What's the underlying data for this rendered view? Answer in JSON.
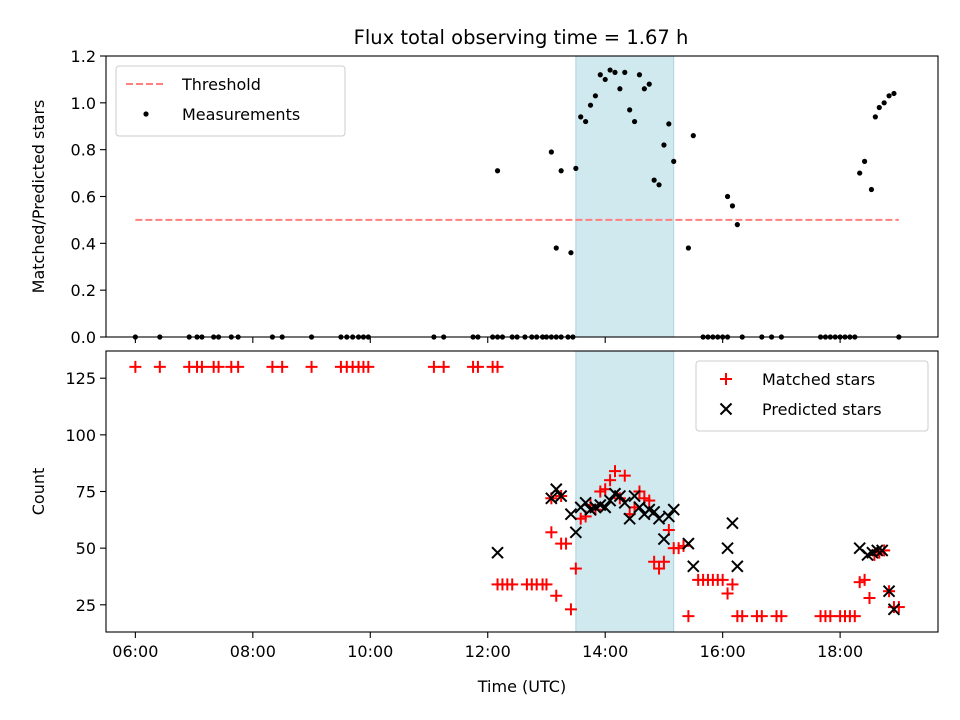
{
  "figure": {
    "title": "Flux total observing time = 1.67 h",
    "highlight_start": "13:30",
    "highlight_end": "15:10",
    "highlight_color": "#cfe9ef"
  },
  "chart_data": [
    {
      "type": "scatter",
      "title": "Flux total observing time = 1.67 h",
      "xlabel": "",
      "ylabel": "Matched/Predicted stars",
      "xlim": [
        "05:30",
        "19:40"
      ],
      "ylim": [
        0,
        1.2
      ],
      "yticks": [
        "0.0",
        "0.2",
        "0.4",
        "0.6",
        "0.8",
        "1.0",
        "1.2"
      ],
      "xticks": [
        "06:00",
        "08:00",
        "10:00",
        "12:00",
        "14:00",
        "16:00",
        "18:00"
      ],
      "show_xtick_labels": false,
      "grid": false,
      "legend": "top-left",
      "threshold": {
        "name": "Threshold",
        "value": 0.5,
        "x_start": "06:00",
        "x_end": "19:00",
        "color": "#ff7f7f",
        "style": "dashed"
      },
      "series": [
        {
          "name": "Measurements",
          "color": "#000000",
          "marker": "dot",
          "points": [
            [
              "06:00",
              0
            ],
            [
              "06:25",
              0
            ],
            [
              "06:55",
              0
            ],
            [
              "07:03",
              0
            ],
            [
              "07:08",
              0
            ],
            [
              "07:20",
              0
            ],
            [
              "07:25",
              0
            ],
            [
              "07:38",
              0
            ],
            [
              "07:45",
              0
            ],
            [
              "08:20",
              0
            ],
            [
              "08:30",
              0
            ],
            [
              "09:00",
              0
            ],
            [
              "09:30",
              0
            ],
            [
              "09:36",
              0
            ],
            [
              "09:42",
              0
            ],
            [
              "09:48",
              0
            ],
            [
              "09:53",
              0
            ],
            [
              "09:58",
              0
            ],
            [
              "11:05",
              0
            ],
            [
              "11:15",
              0
            ],
            [
              "11:45",
              0
            ],
            [
              "11:50",
              0
            ],
            [
              "12:05",
              0
            ],
            [
              "12:10",
              0
            ],
            [
              "12:15",
              0
            ],
            [
              "12:25",
              0
            ],
            [
              "12:30",
              0
            ],
            [
              "12:38",
              0
            ],
            [
              "12:45",
              0
            ],
            [
              "12:50",
              0
            ],
            [
              "12:56",
              0
            ],
            [
              "13:00",
              0
            ],
            [
              "13:05",
              0
            ],
            [
              "13:10",
              0
            ],
            [
              "13:15",
              0
            ],
            [
              "13:22",
              0
            ],
            [
              "13:27",
              0
            ],
            [
              "12:10",
              0.71
            ],
            [
              "13:05",
              0.79
            ],
            [
              "13:10",
              0.38
            ],
            [
              "13:15",
              0.71
            ],
            [
              "13:25",
              0.36
            ],
            [
              "13:30",
              0.72
            ],
            [
              "13:35",
              0.94
            ],
            [
              "13:40",
              0.92
            ],
            [
              "13:45",
              0.99
            ],
            [
              "13:50",
              1.03
            ],
            [
              "13:55",
              1.12
            ],
            [
              "14:00",
              1.1
            ],
            [
              "14:05",
              1.14
            ],
            [
              "14:10",
              1.13
            ],
            [
              "14:15",
              1.06
            ],
            [
              "14:20",
              1.13
            ],
            [
              "14:25",
              0.97
            ],
            [
              "14:30",
              0.92
            ],
            [
              "14:35",
              1.12
            ],
            [
              "14:40",
              1.06
            ],
            [
              "14:45",
              1.08
            ],
            [
              "14:50",
              0.67
            ],
            [
              "14:55",
              0.65
            ],
            [
              "15:00",
              0.82
            ],
            [
              "15:05",
              0.91
            ],
            [
              "15:10",
              0.75
            ],
            [
              "15:25",
              0.38
            ],
            [
              "15:30",
              0.86
            ],
            [
              "16:05",
              0.6
            ],
            [
              "16:10",
              0.56
            ],
            [
              "16:15",
              0.48
            ],
            [
              "15:40",
              0
            ],
            [
              "15:45",
              0
            ],
            [
              "15:50",
              0
            ],
            [
              "15:55",
              0
            ],
            [
              "16:00",
              0
            ],
            [
              "16:05",
              0
            ],
            [
              "16:20",
              0
            ],
            [
              "16:40",
              0
            ],
            [
              "16:50",
              0
            ],
            [
              "17:00",
              0
            ],
            [
              "17:40",
              0
            ],
            [
              "17:45",
              0
            ],
            [
              "17:50",
              0
            ],
            [
              "17:55",
              0
            ],
            [
              "18:00",
              0
            ],
            [
              "18:05",
              0
            ],
            [
              "18:10",
              0
            ],
            [
              "18:15",
              0
            ],
            [
              "19:00",
              0
            ],
            [
              "18:20",
              0.7
            ],
            [
              "18:25",
              0.75
            ],
            [
              "18:32",
              0.63
            ],
            [
              "18:36",
              0.94
            ],
            [
              "18:40",
              0.98
            ],
            [
              "18:45",
              1.0
            ],
            [
              "18:50",
              1.03
            ],
            [
              "18:55",
              1.04
            ]
          ]
        }
      ]
    },
    {
      "type": "scatter",
      "title": "",
      "xlabel": "Time (UTC)",
      "ylabel": "Count",
      "xlim": [
        "05:30",
        "19:40"
      ],
      "ylim": [
        13,
        137
      ],
      "yticks": [
        "25",
        "50",
        "75",
        "100",
        "125"
      ],
      "xticks": [
        "06:00",
        "08:00",
        "10:00",
        "12:00",
        "14:00",
        "16:00",
        "18:00"
      ],
      "show_xtick_labels": true,
      "grid": false,
      "legend": "top-right",
      "series": [
        {
          "name": "Matched stars",
          "color": "#ff0000",
          "marker": "plus",
          "points": [
            [
              "06:00",
              130
            ],
            [
              "06:25",
              130
            ],
            [
              "06:55",
              130
            ],
            [
              "07:03",
              130
            ],
            [
              "07:08",
              130
            ],
            [
              "07:20",
              130
            ],
            [
              "07:25",
              130
            ],
            [
              "07:38",
              130
            ],
            [
              "07:45",
              130
            ],
            [
              "08:20",
              130
            ],
            [
              "08:30",
              130
            ],
            [
              "09:00",
              130
            ],
            [
              "09:30",
              130
            ],
            [
              "09:36",
              130
            ],
            [
              "09:42",
              130
            ],
            [
              "09:48",
              130
            ],
            [
              "09:53",
              130
            ],
            [
              "09:58",
              130
            ],
            [
              "11:05",
              130
            ],
            [
              "11:15",
              130
            ],
            [
              "11:45",
              130
            ],
            [
              "11:50",
              130
            ],
            [
              "12:05",
              130
            ],
            [
              "12:10",
              130
            ],
            [
              "12:10",
              34
            ],
            [
              "12:15",
              34
            ],
            [
              "12:20",
              34
            ],
            [
              "12:25",
              34
            ],
            [
              "12:40",
              34
            ],
            [
              "12:45",
              34
            ],
            [
              "12:50",
              34
            ],
            [
              "12:56",
              34
            ],
            [
              "13:00",
              34
            ],
            [
              "13:05",
              57
            ],
            [
              "13:05",
              72
            ],
            [
              "13:10",
              29
            ],
            [
              "13:15",
              73
            ],
            [
              "13:15",
              52
            ],
            [
              "13:20",
              52
            ],
            [
              "13:25",
              23
            ],
            [
              "13:30",
              41
            ],
            [
              "13:35",
              63
            ],
            [
              "13:40",
              64
            ],
            [
              "13:45",
              69
            ],
            [
              "13:50",
              67
            ],
            [
              "13:55",
              75
            ],
            [
              "14:00",
              76
            ],
            [
              "14:05",
              80
            ],
            [
              "14:10",
              84
            ],
            [
              "14:15",
              72
            ],
            [
              "14:20",
              82
            ],
            [
              "14:25",
              65
            ],
            [
              "14:30",
              68
            ],
            [
              "14:35",
              75
            ],
            [
              "14:40",
              72
            ],
            [
              "14:45",
              71
            ],
            [
              "14:50",
              44
            ],
            [
              "14:55",
              41
            ],
            [
              "15:00",
              44
            ],
            [
              "15:05",
              58
            ],
            [
              "15:10",
              50
            ],
            [
              "15:15",
              50
            ],
            [
              "15:20",
              51
            ],
            [
              "15:25",
              20
            ],
            [
              "15:35",
              36
            ],
            [
              "15:40",
              36
            ],
            [
              "15:45",
              36
            ],
            [
              "15:50",
              36
            ],
            [
              "15:55",
              36
            ],
            [
              "16:00",
              36
            ],
            [
              "16:05",
              30
            ],
            [
              "16:10",
              34
            ],
            [
              "16:15",
              20
            ],
            [
              "16:20",
              20
            ],
            [
              "16:35",
              20
            ],
            [
              "16:40",
              20
            ],
            [
              "16:55",
              20
            ],
            [
              "17:00",
              20
            ],
            [
              "17:40",
              20
            ],
            [
              "17:45",
              20
            ],
            [
              "17:50",
              20
            ],
            [
              "18:00",
              20
            ],
            [
              "18:05",
              20
            ],
            [
              "18:10",
              20
            ],
            [
              "18:15",
              20
            ],
            [
              "18:20",
              35
            ],
            [
              "18:25",
              36
            ],
            [
              "18:30",
              28
            ],
            [
              "18:35",
              47
            ],
            [
              "18:40",
              48
            ],
            [
              "18:45",
              49
            ],
            [
              "18:50",
              31
            ],
            [
              "18:55",
              24
            ],
            [
              "19:00",
              24
            ]
          ]
        },
        {
          "name": "Predicted stars",
          "color": "#000000",
          "marker": "x",
          "points": [
            [
              "12:10",
              48
            ],
            [
              "13:05",
              72
            ],
            [
              "13:10",
              76
            ],
            [
              "13:15",
              73
            ],
            [
              "13:25",
              65
            ],
            [
              "13:30",
              57
            ],
            [
              "13:35",
              68
            ],
            [
              "13:40",
              70
            ],
            [
              "13:45",
              67
            ],
            [
              "13:50",
              68
            ],
            [
              "13:55",
              69
            ],
            [
              "14:00",
              68
            ],
            [
              "14:05",
              71
            ],
            [
              "14:10",
              74
            ],
            [
              "14:15",
              73
            ],
            [
              "14:20",
              70
            ],
            [
              "14:25",
              63
            ],
            [
              "14:30",
              73
            ],
            [
              "14:35",
              68
            ],
            [
              "14:40",
              65
            ],
            [
              "14:45",
              67
            ],
            [
              "14:50",
              66
            ],
            [
              "14:55",
              63
            ],
            [
              "15:00",
              54
            ],
            [
              "15:05",
              64
            ],
            [
              "15:10",
              67
            ],
            [
              "15:25",
              52
            ],
            [
              "15:30",
              42
            ],
            [
              "16:05",
              50
            ],
            [
              "16:10",
              61
            ],
            [
              "16:15",
              42
            ],
            [
              "18:20",
              50
            ],
            [
              "18:28",
              47
            ],
            [
              "18:33",
              48
            ],
            [
              "18:38",
              49
            ],
            [
              "18:43",
              49
            ],
            [
              "18:50",
              31
            ],
            [
              "18:55",
              23
            ]
          ]
        }
      ]
    }
  ]
}
